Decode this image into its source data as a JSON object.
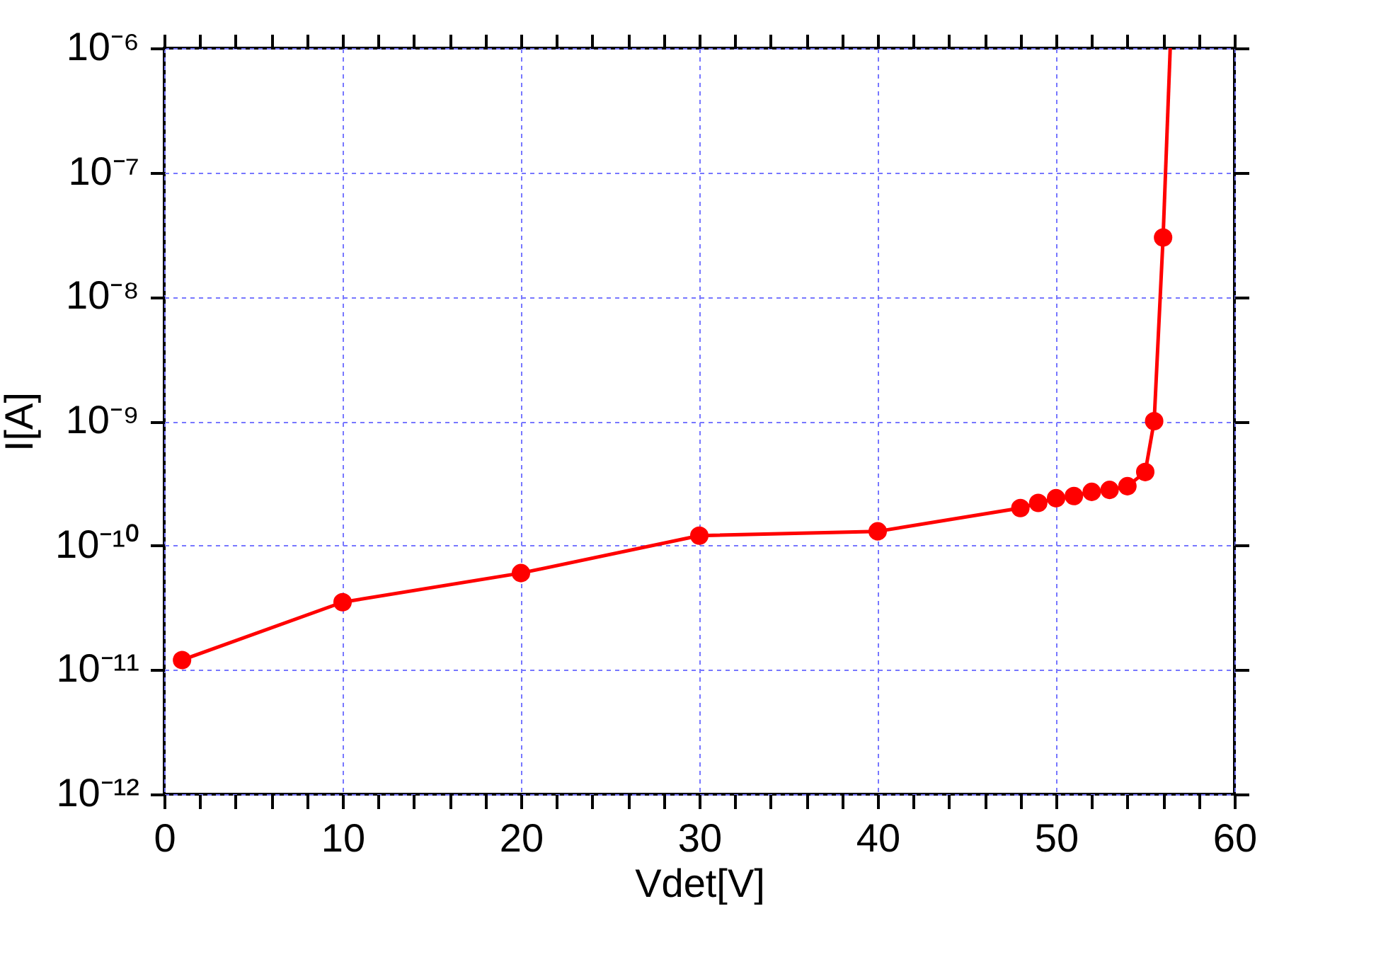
{
  "chart_data": {
    "type": "line",
    "xlabel": "Vdet[V]",
    "ylabel": "I[A]",
    "log": "y",
    "grid": true,
    "legend": false,
    "marker": "circle",
    "line_style": "solid",
    "xlim": [
      0,
      60
    ],
    "xticks": [
      0,
      {
        "value": 2,
        "label": null
      },
      {
        "value": 4,
        "label": null
      },
      {
        "value": 6,
        "label": null
      },
      {
        "value": 8,
        "label": null
      },
      10,
      {
        "value": 12,
        "label": null
      },
      {
        "value": 14,
        "label": null
      },
      {
        "value": 16,
        "label": null
      },
      {
        "value": 18,
        "label": null
      },
      20,
      {
        "value": 22,
        "label": null
      },
      {
        "value": 24,
        "label": null
      },
      {
        "value": 26,
        "label": null
      },
      {
        "value": 28,
        "label": null
      },
      30,
      {
        "value": 32,
        "label": null
      },
      {
        "value": 34,
        "label": null
      },
      {
        "value": 36,
        "label": null
      },
      {
        "value": 38,
        "label": null
      },
      40,
      {
        "value": 42,
        "label": null
      },
      {
        "value": 44,
        "label": null
      },
      {
        "value": 46,
        "label": null
      },
      {
        "value": 48,
        "label": null
      },
      50,
      {
        "value": 52,
        "label": null
      },
      {
        "value": 54,
        "label": null
      },
      {
        "value": 56,
        "label": null
      },
      {
        "value": 58,
        "label": null
      },
      60
    ],
    "ylim": [
      1e-12,
      1e-06
    ],
    "yticks": [
      {
        "value": 1e-12,
        "label": "10⁻¹²"
      },
      {
        "value": 1e-11,
        "label": "10⁻¹¹"
      },
      {
        "value": 1e-10,
        "label": "10⁻¹⁰"
      },
      {
        "value": 1e-09,
        "label": "10⁻⁹"
      },
      {
        "value": 1e-08,
        "label": "10⁻⁸"
      },
      {
        "value": 1e-07,
        "label": "10⁻⁷"
      },
      {
        "value": 1e-06,
        "label": "10⁻⁶"
      }
    ],
    "series": [
      {
        "type": "line",
        "color": "#ff0000",
        "x": [
          1,
          10,
          20,
          30,
          40,
          48,
          49,
          50,
          51,
          52,
          53,
          54,
          55,
          55.5,
          56
        ],
        "values": [
          1.2e-11,
          3.5e-11,
          6e-11,
          1.2e-10,
          1.3e-10,
          2e-10,
          2.2e-10,
          2.4e-10,
          2.5e-10,
          2.7e-10,
          2.8e-10,
          3e-10,
          3.9e-10,
          1e-09,
          3e-08
        ]
      },
      {
        "type": "line",
        "color": "#ff0000",
        "marker": "none",
        "x": [
          56,
          56.4
        ],
        "values": [
          3e-08,
          1e-06
        ]
      }
    ]
  }
}
